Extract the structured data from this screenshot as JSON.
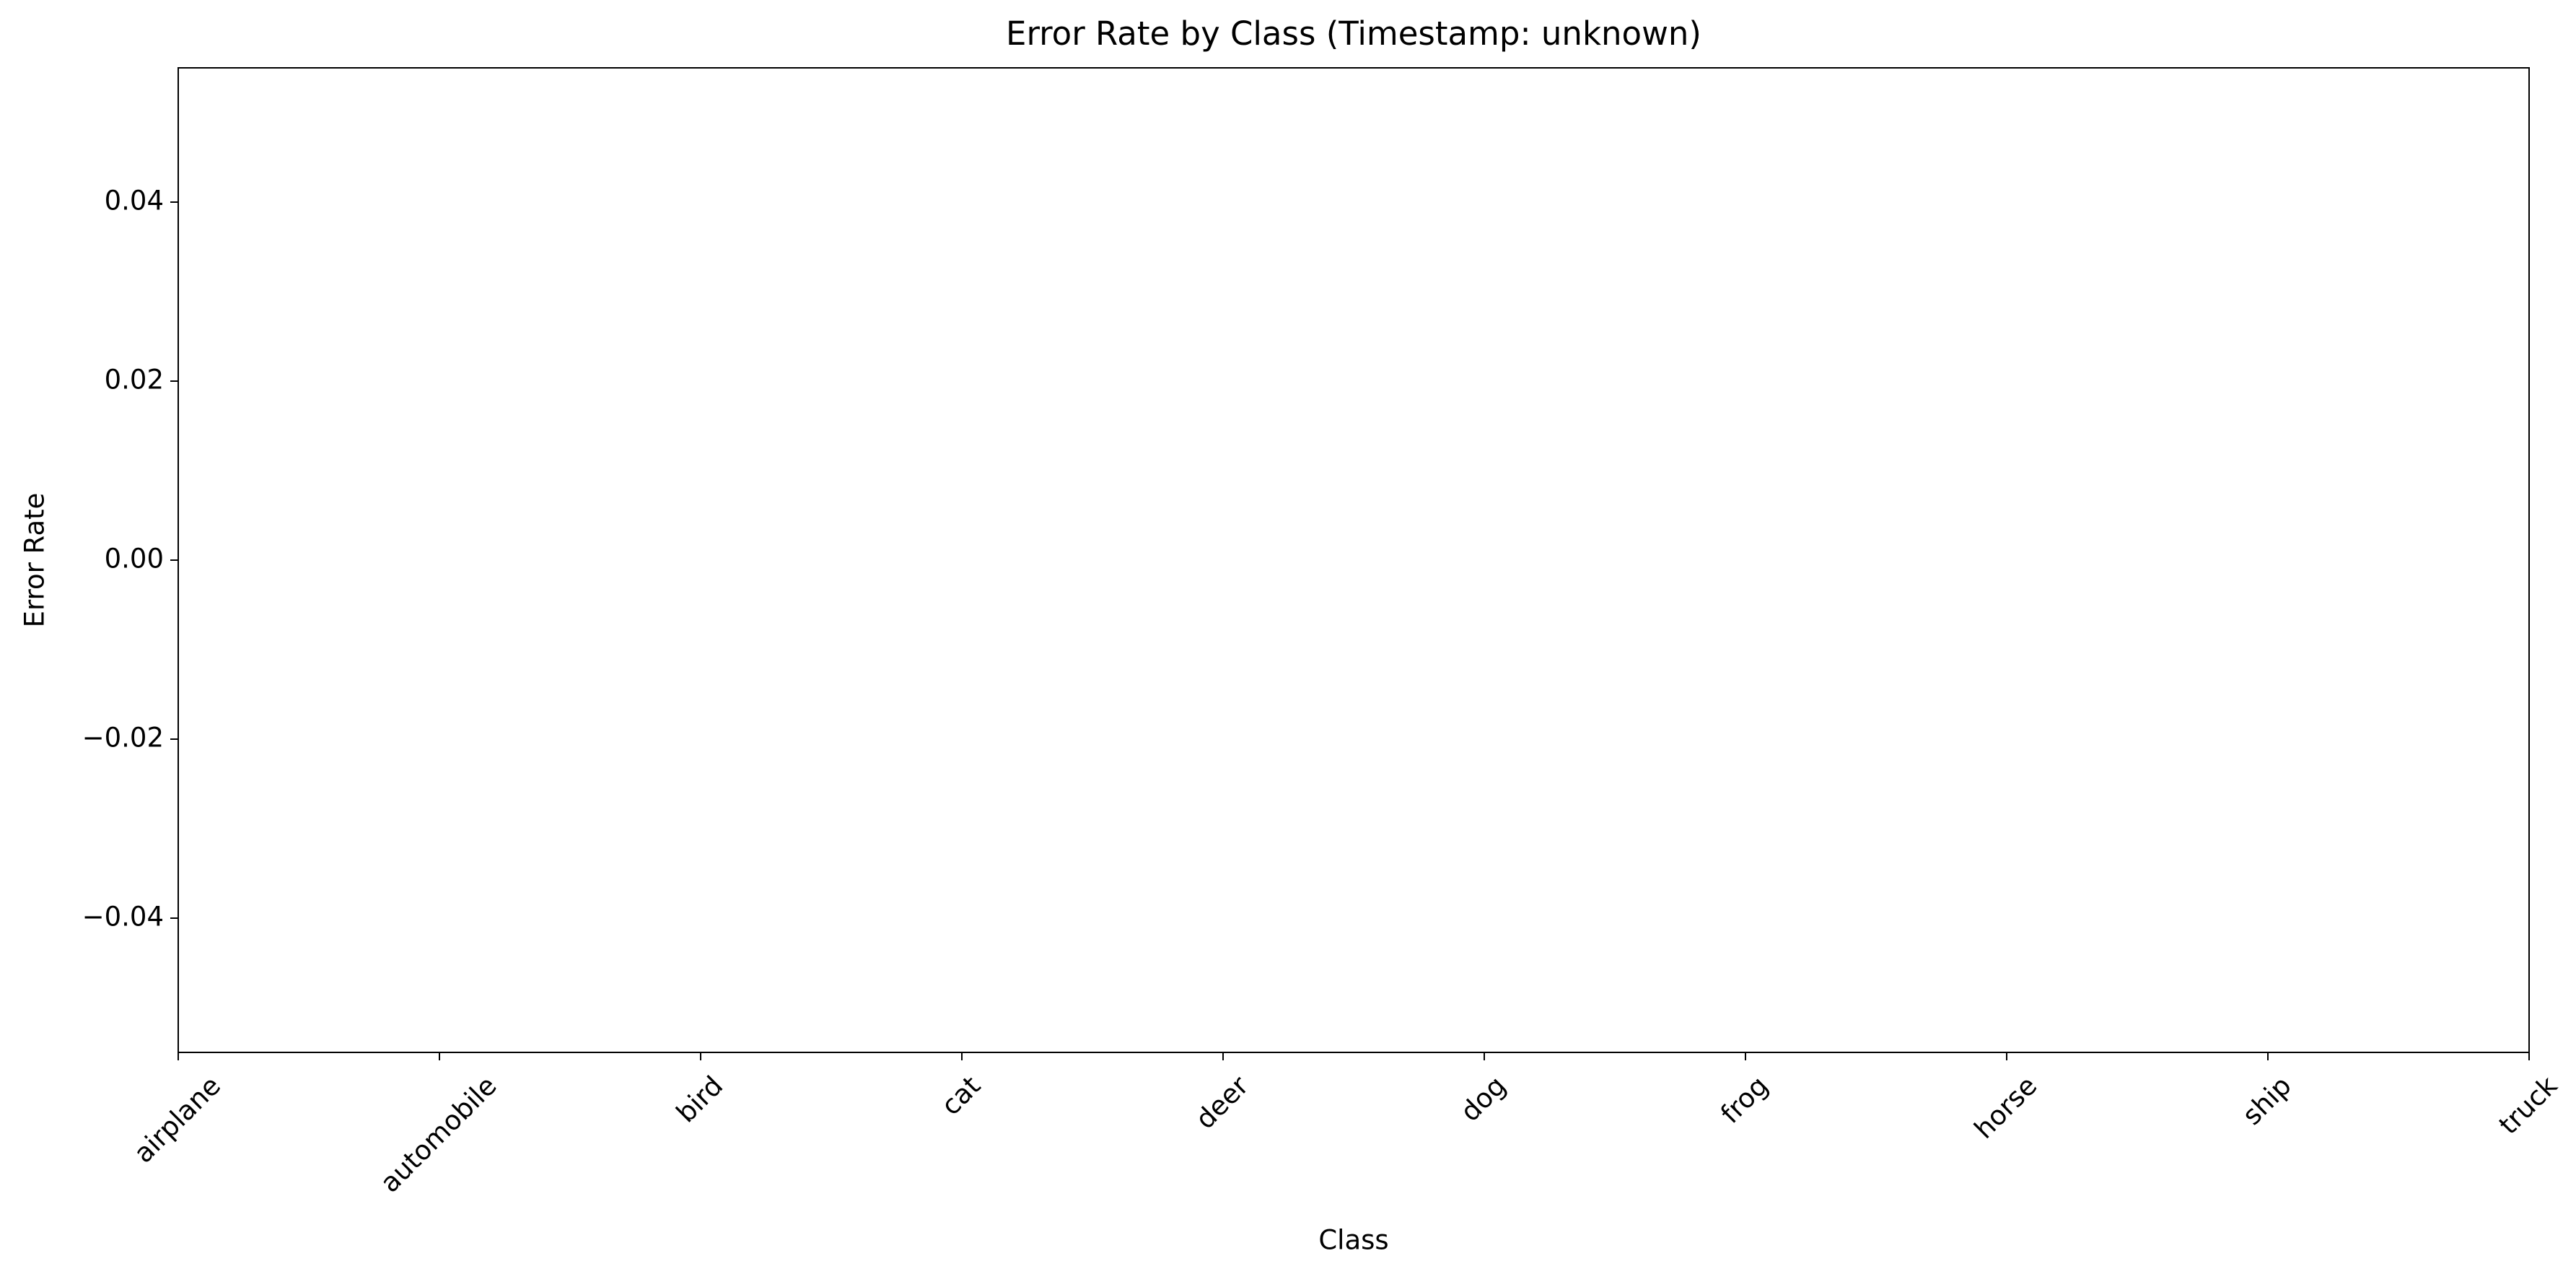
{
  "chart_data": {
    "type": "line",
    "title": "Error Rate by Class (Timestamp: unknown)",
    "x_label": "Class",
    "y_label": "Error Rate",
    "categories": [
      "airplane",
      "automobile",
      "bird",
      "cat",
      "deer",
      "dog",
      "frog",
      "horse",
      "ship",
      "truck"
    ],
    "values": [
      null,
      null,
      null,
      null,
      null,
      null,
      null,
      null,
      null,
      null
    ],
    "color": "#1f77b4",
    "ylim": [
      -0.055,
      0.055
    ],
    "yticks": [
      {
        "value": -0.04,
        "label": "−0.04"
      },
      {
        "value": -0.02,
        "label": "−0.02"
      },
      {
        "value": 0,
        "label": "0.00"
      },
      0.02,
      0.04
    ],
    "grid": false
  }
}
